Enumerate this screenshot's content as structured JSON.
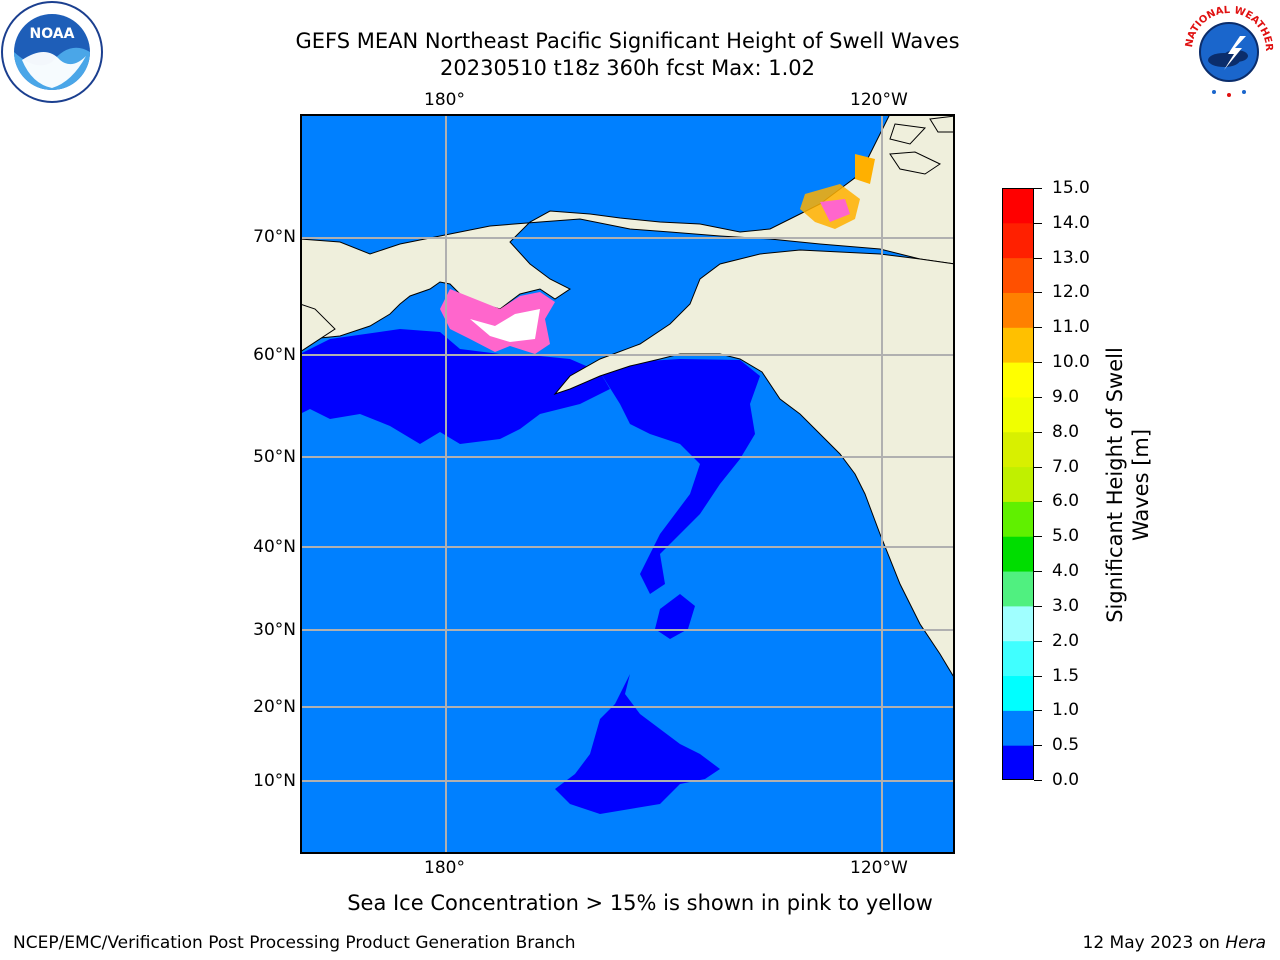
{
  "title": {
    "line1": "GEFS MEAN Northeast Pacific Significant Height of Swell Waves",
    "line2": "20230510 t18z 360h fcst   Max: 1.02"
  },
  "map": {
    "lon_labels_top": [
      "180°",
      "120°W"
    ],
    "lon_labels_bottom": [
      "180°",
      "120°W"
    ],
    "lat_labels": [
      "70°N",
      "60°N",
      "50°N",
      "40°N",
      "30°N",
      "20°N",
      "10°N"
    ],
    "colors": {
      "ocean": "#0080ff",
      "low": "#0000ff",
      "land": "#efefdc",
      "grid": "#b0b0b0"
    }
  },
  "colorbar": {
    "label": "Significant Height of Swell Waves [m]",
    "label_lines": [
      "Significant Height of Swell",
      "Waves [m]"
    ],
    "ticks": [
      "15.0",
      "14.0",
      "13.0",
      "12.0",
      "11.0",
      "10.0",
      "9.0",
      "8.0",
      "7.0",
      "6.0",
      "5.0",
      "4.0",
      "3.0",
      "2.0",
      "1.5",
      "1.0",
      "0.5",
      "0.0"
    ],
    "colors_bottom_to_top": [
      "#0000ff",
      "#0080ff",
      "#00ffff",
      "#40ffff",
      "#a0ffff",
      "#50f080",
      "#00dd00",
      "#60f000",
      "#c0f000",
      "#d8f000",
      "#f0ff00",
      "#ffff00",
      "#ffc000",
      "#ff8000",
      "#ff5000",
      "#ff2000",
      "#ff0000"
    ]
  },
  "note": "Sea Ice Concentration > 15% is shown in pink to yellow",
  "footer": {
    "left": "NCEP/EMC/Verification Post Processing Product Generation Branch",
    "right_date": "12 May 2023 on",
    "right_host": "Hera"
  },
  "logos": {
    "noaa_text": "NOAA",
    "nws_text": "NATIONAL WEATHER SERVICE"
  }
}
